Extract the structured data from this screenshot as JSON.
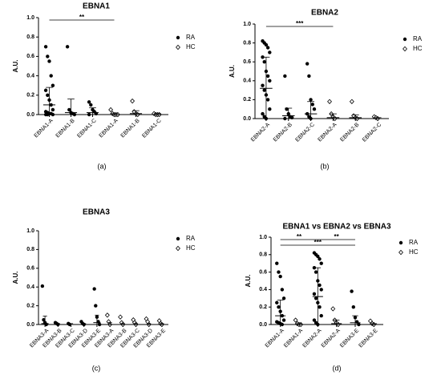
{
  "chart_data": [
    {
      "type": "strip",
      "title": "EBNA1",
      "panel_label": "(a)",
      "ylabel": "A.U.",
      "categories": [
        "EBNA1-A",
        "EBNA1-B",
        "EBNA1-C",
        "EBNA1-A",
        "EBNA1-B",
        "EBNA1-C"
      ],
      "ylim": [
        0,
        1
      ],
      "yticks": [
        {
          "value": 0,
          "label": "0.0"
        },
        {
          "value": 0.2,
          "label": "0.2"
        },
        {
          "value": 0.4,
          "label": "0.4"
        },
        {
          "value": 0.6,
          "label": "0.6"
        },
        {
          "value": 0.8,
          "label": "0.8"
        },
        {
          "value": 1,
          "label": "1.0"
        }
      ],
      "series": [
        {
          "name": "RA",
          "color": "#000000",
          "marker": "filled-circle",
          "values": [
            [
              0.7,
              0.6,
              0.55,
              0.4,
              0.3,
              0.25,
              0.2,
              0.15,
              0.1,
              0.05,
              0.03,
              0.02,
              0.01,
              0.01,
              0,
              0,
              0
            ],
            [
              0.7,
              0.05,
              0.02,
              0.01,
              0
            ],
            [
              0.13,
              0.1,
              0.05,
              0.03,
              0.01,
              0
            ],
            null,
            null,
            null
          ],
          "means": [
            0.1,
            0.02,
            0.02,
            null,
            null,
            null
          ],
          "errors": [
            0.18,
            0.14,
            0.05,
            null,
            null,
            null
          ]
        },
        {
          "name": "HC",
          "color": "#000000",
          "marker": "open-diamond",
          "values": [
            null,
            null,
            null,
            [
              0.05,
              0.01,
              0,
              0,
              0
            ],
            [
              0.14,
              0.03,
              0.01,
              0
            ],
            [
              0.01,
              0,
              0,
              0
            ]
          ],
          "means": [
            null,
            null,
            null,
            0,
            0.01,
            0
          ],
          "errors": [
            null,
            null,
            null,
            0.01,
            0.03,
            0.01
          ]
        }
      ],
      "comparisons": [
        {
          "from": 0,
          "to": 3,
          "label": "**"
        }
      ]
    },
    {
      "type": "strip",
      "title": "EBNA2",
      "panel_label": "(b)",
      "ylabel": "A.U.",
      "categories": [
        "EBNA2-A",
        "EBNA2-B",
        "EBNA2-C",
        "EBNA2-A",
        "EBNA2-B",
        "EBNA2-C"
      ],
      "ylim": [
        0,
        1
      ],
      "yticks": [
        {
          "value": 0,
          "label": "0.0"
        },
        {
          "value": 0.2,
          "label": "0.2"
        },
        {
          "value": 0.4,
          "label": "0.4"
        },
        {
          "value": 0.6,
          "label": "0.6"
        },
        {
          "value": 0.8,
          "label": "0.8"
        },
        {
          "value": 1,
          "label": "1.0"
        }
      ],
      "series": [
        {
          "name": "RA",
          "color": "#000000",
          "marker": "filled-circle",
          "values": [
            [
              0.82,
              0.8,
              0.78,
              0.75,
              0.7,
              0.65,
              0.6,
              0.5,
              0.45,
              0.4,
              0.35,
              0.3,
              0.25,
              0.2,
              0.1,
              0.05,
              0.02,
              0
            ],
            [
              0.45,
              0.1,
              0.05,
              0.02,
              0.01,
              0
            ],
            [
              0.58,
              0.45,
              0.2,
              0.15,
              0.1,
              0.05,
              0.02,
              0
            ],
            null,
            null,
            null
          ],
          "means": [
            0.32,
            0.03,
            0.05,
            null,
            null,
            null
          ],
          "errors": [
            0.33,
            0.08,
            0.13,
            null,
            null,
            null
          ]
        },
        {
          "name": "HC",
          "color": "#000000",
          "marker": "open-diamond",
          "values": [
            null,
            null,
            null,
            [
              0.18,
              0.05,
              0.02,
              0
            ],
            [
              0.18,
              0.03,
              0.01,
              0
            ],
            [
              0.02,
              0.01,
              0
            ]
          ],
          "means": [
            null,
            null,
            null,
            0.01,
            0.01,
            0
          ],
          "errors": [
            null,
            null,
            null,
            0.04,
            0.03,
            0.01
          ]
        }
      ],
      "comparisons": [
        {
          "from": 0,
          "to": 3,
          "label": "***"
        }
      ]
    },
    {
      "type": "strip",
      "title": "EBNA3",
      "panel_label": "(c)",
      "ylabel": "A.U.",
      "categories": [
        "EBNA3-A",
        "EBNA3-B",
        "EBNA3-C",
        "EBNA3-D",
        "EBNA3-E",
        "EBNA3-A",
        "EBNA3-B",
        "EBNA3-C",
        "EBNA3-D",
        "EBNA3-E"
      ],
      "ylim": [
        0,
        1
      ],
      "yticks": [
        {
          "value": 0,
          "label": "0.0"
        },
        {
          "value": 0.2,
          "label": "0.2"
        },
        {
          "value": 0.4,
          "label": "0.4"
        },
        {
          "value": 0.6,
          "label": "0.6"
        },
        {
          "value": 0.8,
          "label": "0.8"
        },
        {
          "value": 1,
          "label": "1.0"
        }
      ],
      "series": [
        {
          "name": "RA",
          "color": "#000000",
          "marker": "filled-circle",
          "values": [
            [
              0.41,
              0.05,
              0.02,
              0
            ],
            [
              0.02,
              0.01,
              0
            ],
            [
              0.01,
              0
            ],
            [
              0.03,
              0.01,
              0
            ],
            [
              0.38,
              0.2,
              0.08,
              0.03,
              0
            ],
            null,
            null,
            null,
            null,
            null
          ],
          "means": [
            0.01,
            0,
            0,
            0,
            0.02,
            null,
            null,
            null,
            null,
            null
          ],
          "errors": [
            0.08,
            0.01,
            0.01,
            0.01,
            0.08,
            null,
            null,
            null,
            null,
            null
          ]
        },
        {
          "name": "HC",
          "color": "#000000",
          "marker": "open-diamond",
          "values": [
            null,
            null,
            null,
            null,
            null,
            [
              0.1,
              0.03,
              0
            ],
            [
              0.08,
              0.02,
              0
            ],
            [
              0.05,
              0.02,
              0
            ],
            [
              0.06,
              0.03,
              0
            ],
            [
              0.04,
              0.01,
              0
            ]
          ],
          "means": [
            null,
            null,
            null,
            null,
            null,
            0,
            0,
            0,
            0,
            0
          ],
          "errors": [
            null,
            null,
            null,
            null,
            null,
            0.02,
            0.01,
            0.01,
            0.01,
            0.01
          ]
        }
      ],
      "comparisons": []
    },
    {
      "type": "strip",
      "title": "EBNA1 vs EBNA2 vs EBNA3",
      "panel_label": "(d)",
      "ylabel": "A.U.",
      "categories": [
        "EBNA1-A",
        "EBNA1-A",
        "EBNA2-A",
        "EBNA2-A",
        "EBNA3-E",
        "EBNA3-E"
      ],
      "ylim": [
        0,
        1
      ],
      "yticks": [
        {
          "value": 0,
          "label": "0.0"
        },
        {
          "value": 0.2,
          "label": "0.2"
        },
        {
          "value": 0.4,
          "label": "0.4"
        },
        {
          "value": 0.6,
          "label": "0.6"
        },
        {
          "value": 0.8,
          "label": "0.8"
        },
        {
          "value": 1,
          "label": "1.0"
        }
      ],
      "series": [
        {
          "name": "RA",
          "color": "#000000",
          "marker": "filled-circle",
          "values": [
            [
              0.7,
              0.6,
              0.55,
              0.4,
              0.3,
              0.25,
              0.2,
              0.15,
              0.1,
              0.05,
              0.03,
              0.02,
              0.01,
              0
            ],
            null,
            [
              0.82,
              0.8,
              0.78,
              0.75,
              0.7,
              0.65,
              0.6,
              0.5,
              0.45,
              0.4,
              0.35,
              0.3,
              0.25,
              0.2,
              0.1,
              0.05,
              0.02,
              0
            ],
            null,
            [
              0.38,
              0.2,
              0.08,
              0.03,
              0
            ],
            null
          ],
          "means": [
            0.1,
            null,
            0.32,
            null,
            0.02,
            null
          ],
          "errors": [
            0.18,
            null,
            0.33,
            null,
            0.08,
            null
          ]
        },
        {
          "name": "HC",
          "color": "#000000",
          "marker": "open-diamond",
          "values": [
            null,
            [
              0.05,
              0.01,
              0,
              0
            ],
            null,
            [
              0.18,
              0.05,
              0.02,
              0
            ],
            null,
            [
              0.04,
              0.01,
              0
            ]
          ],
          "means": [
            null,
            0,
            null,
            0.01,
            null,
            0
          ],
          "errors": [
            null,
            0.01,
            null,
            0.04,
            null,
            0.01
          ]
        }
      ],
      "comparisons": [
        {
          "from": 0,
          "to": 2,
          "label": "**"
        },
        {
          "from": 2,
          "to": 4,
          "label": "**"
        },
        {
          "from": 0,
          "to": 4,
          "label": "***"
        }
      ]
    }
  ]
}
